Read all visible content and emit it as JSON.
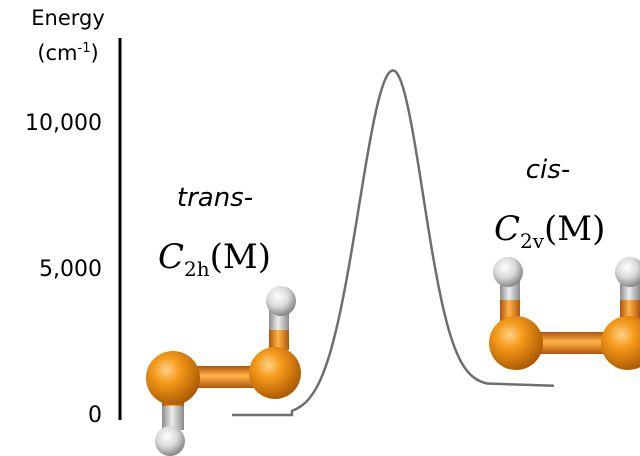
{
  "axis": {
    "label_line1": "Energy",
    "label_unit_prefix": "(cm",
    "label_unit_exp": "-1",
    "label_unit_suffix": ")",
    "ticks": [
      "10,000",
      "5,000",
      "0"
    ],
    "tick_values": [
      10000,
      5000,
      0
    ]
  },
  "trans_label": {
    "prefix": "trans-",
    "symmetry_letter": "C",
    "symmetry_sub": "2h",
    "state": "(M)"
  },
  "cis_label": {
    "prefix": "cis-",
    "symmetry_letter": "C",
    "symmetry_sub": "2v",
    "state": "(M)"
  },
  "energy_levels_cm1": {
    "trans": 0,
    "barrier": 11800,
    "cis": 1000
  },
  "colors": {
    "curve": "#6e6e6e",
    "axis": "#000000",
    "atom_heavy": "#f08a0a",
    "atom_heavy_dark": "#a85500",
    "atom_h": "#e6e6e6",
    "atom_h_dark": "#7a7a7a"
  }
}
